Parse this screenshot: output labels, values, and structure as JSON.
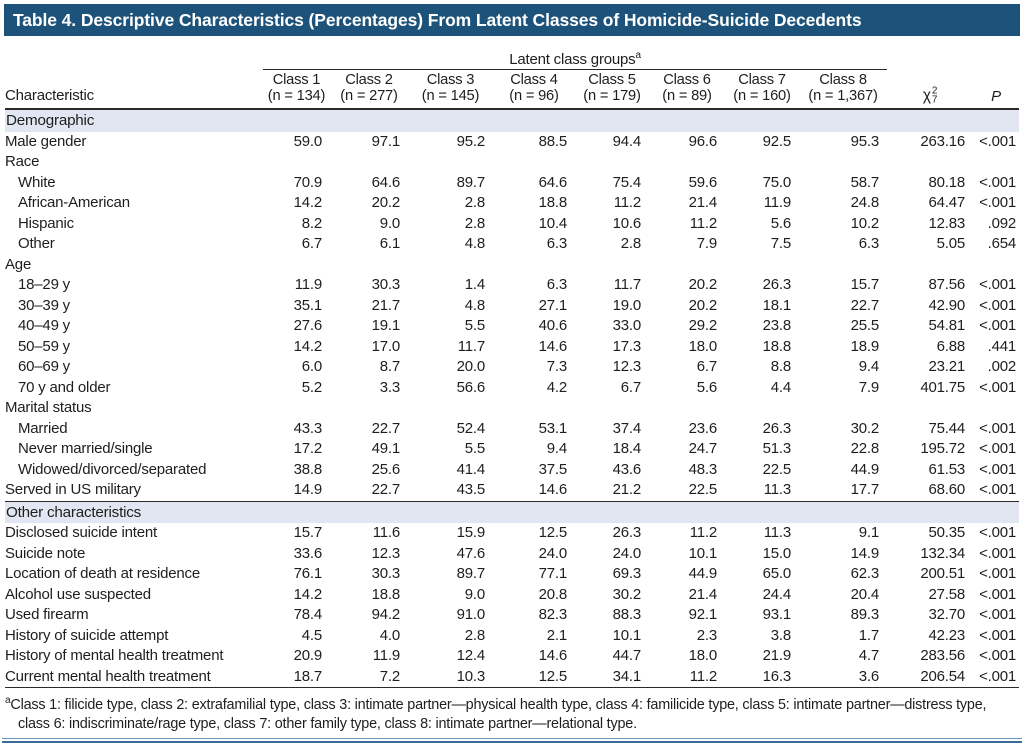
{
  "title": "Table 4. Descriptive Characteristics (Percentages) From Latent Classes of Homicide-Suicide Decedents",
  "table": {
    "span_header": {
      "label": "Latent class groups",
      "sup": "a"
    },
    "characteristic_header": "Characteristic",
    "class_headers": [
      {
        "name": "Class 1",
        "n": "(n = 134)"
      },
      {
        "name": "Class 2",
        "n": "(n = 277)"
      },
      {
        "name": "Class 3",
        "n": "(n = 145)"
      },
      {
        "name": "Class 4",
        "n": "(n = 96)"
      },
      {
        "name": "Class 5",
        "n": "(n = 179)"
      },
      {
        "name": "Class 6",
        "n": "(n = 89)"
      },
      {
        "name": "Class 7",
        "n": "(n = 160)"
      },
      {
        "name": "Class 8",
        "n": "(n = 1,367)"
      }
    ],
    "chi_header": {
      "symbol": "χ",
      "sup": "2",
      "sub": "7"
    },
    "p_header": "P",
    "sections": [
      {
        "label": "Demographic",
        "rows": [
          {
            "label": "Male gender",
            "indent": false,
            "values": [
              "59.0",
              "97.1",
              "95.2",
              "88.5",
              "94.4",
              "96.6",
              "92.5",
              "95.3"
            ],
            "chi": "263.16",
            "p": "<.001"
          },
          {
            "label": "Race",
            "indent": false,
            "values": [],
            "chi": "",
            "p": ""
          },
          {
            "label": "White",
            "indent": true,
            "values": [
              "70.9",
              "64.6",
              "89.7",
              "64.6",
              "75.4",
              "59.6",
              "75.0",
              "58.7"
            ],
            "chi": "80.18",
            "p": "<.001"
          },
          {
            "label": "African-American",
            "indent": true,
            "values": [
              "14.2",
              "20.2",
              "2.8",
              "18.8",
              "11.2",
              "21.4",
              "11.9",
              "24.8"
            ],
            "chi": "64.47",
            "p": "<.001"
          },
          {
            "label": "Hispanic",
            "indent": true,
            "values": [
              "8.2",
              "9.0",
              "2.8",
              "10.4",
              "10.6",
              "11.2",
              "5.6",
              "10.2"
            ],
            "chi": "12.83",
            "p": ".092"
          },
          {
            "label": "Other",
            "indent": true,
            "values": [
              "6.7",
              "6.1",
              "4.8",
              "6.3",
              "2.8",
              "7.9",
              "7.5",
              "6.3"
            ],
            "chi": "5.05",
            "p": ".654"
          },
          {
            "label": "Age",
            "indent": false,
            "values": [],
            "chi": "",
            "p": ""
          },
          {
            "label": "18–29 y",
            "indent": true,
            "values": [
              "11.9",
              "30.3",
              "1.4",
              "6.3",
              "11.7",
              "20.2",
              "26.3",
              "15.7"
            ],
            "chi": "87.56",
            "p": "<.001"
          },
          {
            "label": "30–39 y",
            "indent": true,
            "values": [
              "35.1",
              "21.7",
              "4.8",
              "27.1",
              "19.0",
              "20.2",
              "18.1",
              "22.7"
            ],
            "chi": "42.90",
            "p": "<.001"
          },
          {
            "label": "40–49 y",
            "indent": true,
            "values": [
              "27.6",
              "19.1",
              "5.5",
              "40.6",
              "33.0",
              "29.2",
              "23.8",
              "25.5"
            ],
            "chi": "54.81",
            "p": "<.001"
          },
          {
            "label": "50–59 y",
            "indent": true,
            "values": [
              "14.2",
              "17.0",
              "11.7",
              "14.6",
              "17.3",
              "18.0",
              "18.8",
              "18.9"
            ],
            "chi": "6.88",
            "p": ".441"
          },
          {
            "label": "60–69 y",
            "indent": true,
            "values": [
              "6.0",
              "8.7",
              "20.0",
              "7.3",
              "12.3",
              "6.7",
              "8.8",
              "9.4"
            ],
            "chi": "23.21",
            "p": ".002"
          },
          {
            "label": "70 y and older",
            "indent": true,
            "values": [
              "5.2",
              "3.3",
              "56.6",
              "4.2",
              "6.7",
              "5.6",
              "4.4",
              "7.9"
            ],
            "chi": "401.75",
            "p": "<.001"
          },
          {
            "label": "Marital status",
            "indent": false,
            "values": [],
            "chi": "",
            "p": ""
          },
          {
            "label": "Married",
            "indent": true,
            "values": [
              "43.3",
              "22.7",
              "52.4",
              "53.1",
              "37.4",
              "23.6",
              "26.3",
              "30.2"
            ],
            "chi": "75.44",
            "p": "<.001"
          },
          {
            "label": "Never married/single",
            "indent": true,
            "values": [
              "17.2",
              "49.1",
              "5.5",
              "9.4",
              "18.4",
              "24.7",
              "51.3",
              "22.8"
            ],
            "chi": "195.72",
            "p": "<.001"
          },
          {
            "label": "Widowed/divorced/separated",
            "indent": true,
            "values": [
              "38.8",
              "25.6",
              "41.4",
              "37.5",
              "43.6",
              "48.3",
              "22.5",
              "44.9"
            ],
            "chi": "61.53",
            "p": "<.001"
          },
          {
            "label": "Served in US military",
            "indent": false,
            "values": [
              "14.9",
              "22.7",
              "43.5",
              "14.6",
              "21.2",
              "22.5",
              "11.3",
              "17.7"
            ],
            "chi": "68.60",
            "p": "<.001"
          }
        ]
      },
      {
        "label": "Other characteristics",
        "rows": [
          {
            "label": "Disclosed suicide intent",
            "indent": false,
            "values": [
              "15.7",
              "11.6",
              "15.9",
              "12.5",
              "26.3",
              "11.2",
              "11.3",
              "9.1"
            ],
            "chi": "50.35",
            "p": "<.001"
          },
          {
            "label": "Suicide note",
            "indent": false,
            "values": [
              "33.6",
              "12.3",
              "47.6",
              "24.0",
              "24.0",
              "10.1",
              "15.0",
              "14.9"
            ],
            "chi": "132.34",
            "p": "<.001"
          },
          {
            "label": "Location of death at residence",
            "indent": false,
            "values": [
              "76.1",
              "30.3",
              "89.7",
              "77.1",
              "69.3",
              "44.9",
              "65.0",
              "62.3"
            ],
            "chi": "200.51",
            "p": "<.001"
          },
          {
            "label": "Alcohol use suspected",
            "indent": false,
            "values": [
              "14.2",
              "18.8",
              "9.0",
              "20.8",
              "30.2",
              "21.4",
              "24.4",
              "20.4"
            ],
            "chi": "27.58",
            "p": "<.001"
          },
          {
            "label": "Used firearm",
            "indent": false,
            "values": [
              "78.4",
              "94.2",
              "91.0",
              "82.3",
              "88.3",
              "92.1",
              "93.1",
              "89.3"
            ],
            "chi": "32.70",
            "p": "<.001"
          },
          {
            "label": "History of suicide attempt",
            "indent": false,
            "values": [
              "4.5",
              "4.0",
              "2.8",
              "2.1",
              "10.1",
              "2.3",
              "3.8",
              "1.7"
            ],
            "chi": "42.23",
            "p": "<.001"
          },
          {
            "label": "History of mental health treatment",
            "indent": false,
            "values": [
              "20.9",
              "11.9",
              "12.4",
              "14.6",
              "44.7",
              "18.0",
              "21.9",
              "4.7"
            ],
            "chi": "283.56",
            "p": "<.001"
          },
          {
            "label": "Current mental health treatment",
            "indent": false,
            "values": [
              "18.7",
              "7.2",
              "10.3",
              "12.5",
              "34.1",
              "11.2",
              "16.3",
              "3.6"
            ],
            "chi": "206.54",
            "p": "<.001"
          }
        ]
      }
    ]
  },
  "footnote": {
    "sup": "a",
    "text": "Class 1: filicide type, class 2: extrafamilial type, class 3: intimate partner—physical health type, class 4: familicide type, class 5: intimate partner—distress type, class 6: indiscriminate/rage type, class 7: other family type, class 8: intimate partner—relational type."
  },
  "colors": {
    "title_bar": "#1d537a",
    "section_band": "#e1e6f2",
    "rule_dark": "#2b2a29",
    "bottom_rule_light_blue": "#6590ba",
    "bottom_rule_dark_blue": "#3a6b9e"
  }
}
